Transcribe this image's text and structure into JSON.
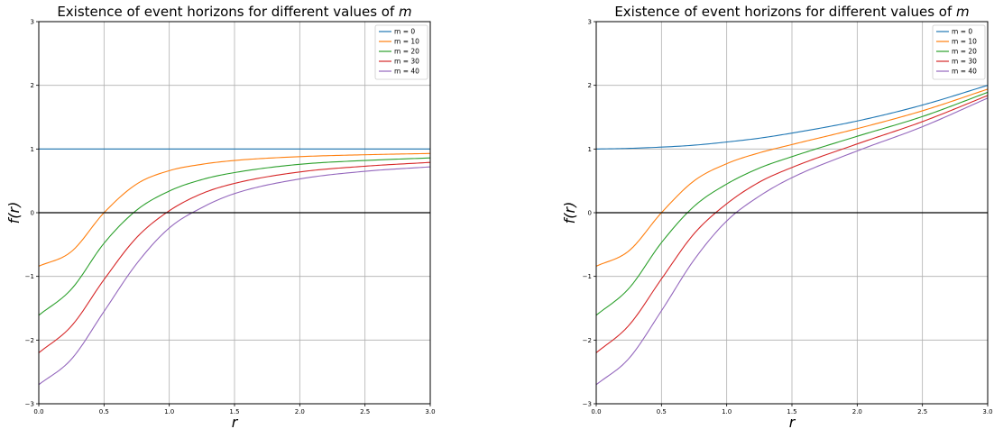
{
  "charts": [
    {
      "title": "Existence of event horizons for different values of ",
      "title_var": "m",
      "xlabel": "r",
      "ylabel": "f(r)",
      "legend_entries": [
        "m = 0",
        "m = 10",
        "m = 20",
        "m = 30",
        "m = 40"
      ]
    },
    {
      "title": "Existence of event horizons for different values of ",
      "title_var": "m",
      "xlabel": "r",
      "ylabel": "f(r)",
      "legend_entries": [
        "m = 0",
        "m = 10",
        "m = 20",
        "m = 30",
        "m = 40"
      ]
    }
  ],
  "chart_data": [
    {
      "type": "line",
      "title": "Existence of event horizons for different values of m",
      "xlabel": "r",
      "ylabel": "f(r)",
      "xlim": [
        0,
        3
      ],
      "ylim": [
        -3,
        3
      ],
      "xticks": [
        "0.0",
        "0.5",
        "1.0",
        "1.5",
        "2.0",
        "2.5",
        "3.0"
      ],
      "yticks": [
        "−3",
        "−2",
        "−1",
        "0",
        "1",
        "2",
        "3"
      ],
      "grid": true,
      "legend_position": "top-right",
      "x": [
        0,
        0.25,
        0.5,
        0.75,
        1.0,
        1.25,
        1.5,
        2.0,
        2.5,
        3.0
      ],
      "series": [
        {
          "name": "m = 0",
          "color": "#1f77b4",
          "values": [
            1.0,
            1.0,
            1.0,
            1.0,
            1.0,
            1.0,
            1.0,
            1.0,
            1.0,
            1.0
          ]
        },
        {
          "name": "m = 10",
          "color": "#ff7f0e",
          "values": [
            -0.84,
            -0.61,
            0.0,
            0.45,
            0.66,
            0.76,
            0.82,
            0.88,
            0.91,
            0.93
          ]
        },
        {
          "name": "m = 20",
          "color": "#2ca02c",
          "values": [
            -1.61,
            -1.2,
            -0.48,
            0.04,
            0.34,
            0.52,
            0.63,
            0.76,
            0.82,
            0.86
          ]
        },
        {
          "name": "m = 30",
          "color": "#d62728",
          "values": [
            -2.2,
            -1.78,
            -1.05,
            -0.39,
            0.03,
            0.3,
            0.46,
            0.64,
            0.73,
            0.79
          ]
        },
        {
          "name": "m = 40",
          "color": "#9467bd",
          "values": [
            -2.7,
            -2.3,
            -1.55,
            -0.8,
            -0.24,
            0.08,
            0.3,
            0.53,
            0.65,
            0.72
          ]
        },
        {
          "name": "axis-zero",
          "color": "#000000",
          "values": [
            0,
            0,
            0,
            0,
            0,
            0,
            0,
            0,
            0,
            0
          ]
        }
      ]
    },
    {
      "type": "line",
      "title": "Existence of event horizons for different values of m",
      "xlabel": "r",
      "ylabel": "f(r)",
      "xlim": [
        0,
        3
      ],
      "ylim": [
        -3,
        3
      ],
      "xticks": [
        "0.0",
        "0.5",
        "1.0",
        "1.5",
        "2.0",
        "2.5",
        "3.0"
      ],
      "yticks": [
        "−3",
        "−2",
        "−1",
        "0",
        "1",
        "2",
        "3"
      ],
      "grid": true,
      "legend_position": "top-right",
      "x": [
        0,
        0.25,
        0.5,
        0.75,
        1.0,
        1.25,
        1.5,
        2.0,
        2.5,
        3.0
      ],
      "series": [
        {
          "name": "m = 0",
          "color": "#1f77b4",
          "values": [
            1.0,
            1.01,
            1.03,
            1.06,
            1.11,
            1.17,
            1.25,
            1.44,
            1.69,
            2.0
          ]
        },
        {
          "name": "m = 10",
          "color": "#ff7f0e",
          "values": [
            -0.84,
            -0.6,
            0.0,
            0.5,
            0.77,
            0.94,
            1.07,
            1.32,
            1.6,
            1.94
          ]
        },
        {
          "name": "m = 20",
          "color": "#2ca02c",
          "values": [
            -1.61,
            -1.19,
            -0.47,
            0.1,
            0.45,
            0.7,
            0.88,
            1.2,
            1.51,
            1.89
          ]
        },
        {
          "name": "m = 30",
          "color": "#d62728",
          "values": [
            -2.2,
            -1.77,
            -1.04,
            -0.33,
            0.14,
            0.48,
            0.71,
            1.08,
            1.43,
            1.84
          ]
        },
        {
          "name": "m = 40",
          "color": "#9467bd",
          "values": [
            -2.7,
            -2.29,
            -1.54,
            -0.74,
            -0.13,
            0.26,
            0.55,
            0.97,
            1.35,
            1.8
          ]
        },
        {
          "name": "axis-zero",
          "color": "#000000",
          "values": [
            0,
            0,
            0,
            0,
            0,
            0,
            0,
            0,
            0,
            0
          ]
        }
      ]
    }
  ]
}
